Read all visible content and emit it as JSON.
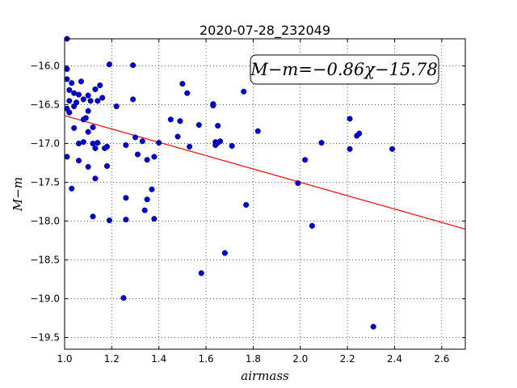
{
  "chart_data": {
    "type": "scatter",
    "title": "2020-07-28_232049",
    "xlabel": "airmass",
    "ylabel": "M−m",
    "xlim": [
      1.0,
      2.7
    ],
    "ylim": [
      -19.65,
      -15.65
    ],
    "x_ticks": [
      "1.0",
      "1.2",
      "1.4",
      "1.6",
      "1.8",
      "2.0",
      "2.2",
      "2.4",
      "2.6"
    ],
    "x_tick_values": [
      1.0,
      1.2,
      1.4,
      1.6,
      1.8,
      2.0,
      2.2,
      2.4,
      2.6
    ],
    "y_ticks": [
      "−16.0",
      "−16.5",
      "−17.0",
      "−17.5",
      "−18.0",
      "−18.5",
      "−19.0",
      "−19.5"
    ],
    "y_tick_values": [
      -16.0,
      -16.5,
      -17.0,
      -17.5,
      -18.0,
      -18.5,
      -19.0,
      -19.5
    ],
    "grid": true,
    "annotation": "M−m=−0.86χ−15.78",
    "fit_line": {
      "slope": -0.86,
      "intercept": -15.78,
      "color": "#ff0000"
    },
    "point_color": "#0000cc",
    "points": [
      {
        "x": 1.01,
        "y": -15.65
      },
      {
        "x": 1.01,
        "y": -16.04
      },
      {
        "x": 1.01,
        "y": -16.17
      },
      {
        "x": 1.02,
        "y": -16.31
      },
      {
        "x": 1.03,
        "y": -16.22
      },
      {
        "x": 1.02,
        "y": -16.45
      },
      {
        "x": 1.04,
        "y": -16.35
      },
      {
        "x": 1.05,
        "y": -16.47
      },
      {
        "x": 1.04,
        "y": -16.52
      },
      {
        "x": 1.01,
        "y": -16.55
      },
      {
        "x": 1.02,
        "y": -16.6
      },
      {
        "x": 1.06,
        "y": -16.37
      },
      {
        "x": 1.07,
        "y": -16.2
      },
      {
        "x": 1.08,
        "y": -16.43
      },
      {
        "x": 1.1,
        "y": -16.38
      },
      {
        "x": 1.11,
        "y": -16.45
      },
      {
        "x": 1.13,
        "y": -16.3
      },
      {
        "x": 1.15,
        "y": -16.25
      },
      {
        "x": 1.19,
        "y": -15.98
      },
      {
        "x": 1.29,
        "y": -15.99
      },
      {
        "x": 1.14,
        "y": -16.45
      },
      {
        "x": 1.16,
        "y": -16.41
      },
      {
        "x": 1.22,
        "y": -16.52
      },
      {
        "x": 1.29,
        "y": -16.43
      },
      {
        "x": 1.1,
        "y": -16.58
      },
      {
        "x": 1.09,
        "y": -16.67
      },
      {
        "x": 1.08,
        "y": -16.69
      },
      {
        "x": 1.04,
        "y": -16.8
      },
      {
        "x": 1.12,
        "y": -16.79
      },
      {
        "x": 1.1,
        "y": -16.85
      },
      {
        "x": 1.06,
        "y": -17.0
      },
      {
        "x": 1.08,
        "y": -16.98
      },
      {
        "x": 1.12,
        "y": -17.0
      },
      {
        "x": 1.14,
        "y": -16.99
      },
      {
        "x": 1.13,
        "y": -17.06
      },
      {
        "x": 1.17,
        "y": -17.06
      },
      {
        "x": 1.18,
        "y": -17.04
      },
      {
        "x": 1.26,
        "y": -17.02
      },
      {
        "x": 1.3,
        "y": -16.92
      },
      {
        "x": 1.33,
        "y": -16.97
      },
      {
        "x": 1.01,
        "y": -17.17
      },
      {
        "x": 1.06,
        "y": -17.22
      },
      {
        "x": 1.1,
        "y": -17.3
      },
      {
        "x": 1.18,
        "y": -17.29
      },
      {
        "x": 1.31,
        "y": -17.14
      },
      {
        "x": 1.35,
        "y": -17.21
      },
      {
        "x": 1.38,
        "y": -17.17
      },
      {
        "x": 1.4,
        "y": -16.99
      },
      {
        "x": 1.13,
        "y": -17.45
      },
      {
        "x": 1.03,
        "y": -17.58
      },
      {
        "x": 1.26,
        "y": -17.7
      },
      {
        "x": 1.37,
        "y": -17.59
      },
      {
        "x": 1.35,
        "y": -17.72
      },
      {
        "x": 1.34,
        "y": -17.86
      },
      {
        "x": 1.12,
        "y": -17.94
      },
      {
        "x": 1.19,
        "y": -17.99
      },
      {
        "x": 1.26,
        "y": -17.98
      },
      {
        "x": 1.38,
        "y": -17.97
      },
      {
        "x": 1.45,
        "y": -16.69
      },
      {
        "x": 1.49,
        "y": -16.71
      },
      {
        "x": 1.5,
        "y": -16.23
      },
      {
        "x": 1.52,
        "y": -16.35
      },
      {
        "x": 1.48,
        "y": -16.91
      },
      {
        "x": 1.53,
        "y": -17.04
      },
      {
        "x": 1.57,
        "y": -16.76
      },
      {
        "x": 1.63,
        "y": -16.49
      },
      {
        "x": 1.63,
        "y": -16.51
      },
      {
        "x": 1.65,
        "y": -16.77
      },
      {
        "x": 1.64,
        "y": -16.98
      },
      {
        "x": 1.64,
        "y": -17.02
      },
      {
        "x": 1.65,
        "y": -16.99
      },
      {
        "x": 1.66,
        "y": -16.97
      },
      {
        "x": 1.71,
        "y": -17.03
      },
      {
        "x": 1.76,
        "y": -16.33
      },
      {
        "x": 1.82,
        "y": -16.84
      },
      {
        "x": 1.77,
        "y": -17.79
      },
      {
        "x": 1.68,
        "y": -18.41
      },
      {
        "x": 1.58,
        "y": -18.67
      },
      {
        "x": 1.25,
        "y": -18.99
      },
      {
        "x": 1.99,
        "y": -17.51
      },
      {
        "x": 2.02,
        "y": -17.21
      },
      {
        "x": 2.05,
        "y": -18.06
      },
      {
        "x": 2.09,
        "y": -16.99
      },
      {
        "x": 2.21,
        "y": -16.68
      },
      {
        "x": 2.21,
        "y": -17.07
      },
      {
        "x": 2.24,
        "y": -16.9
      },
      {
        "x": 2.25,
        "y": -16.87
      },
      {
        "x": 2.39,
        "y": -17.07
      },
      {
        "x": 2.31,
        "y": -19.36
      }
    ]
  }
}
